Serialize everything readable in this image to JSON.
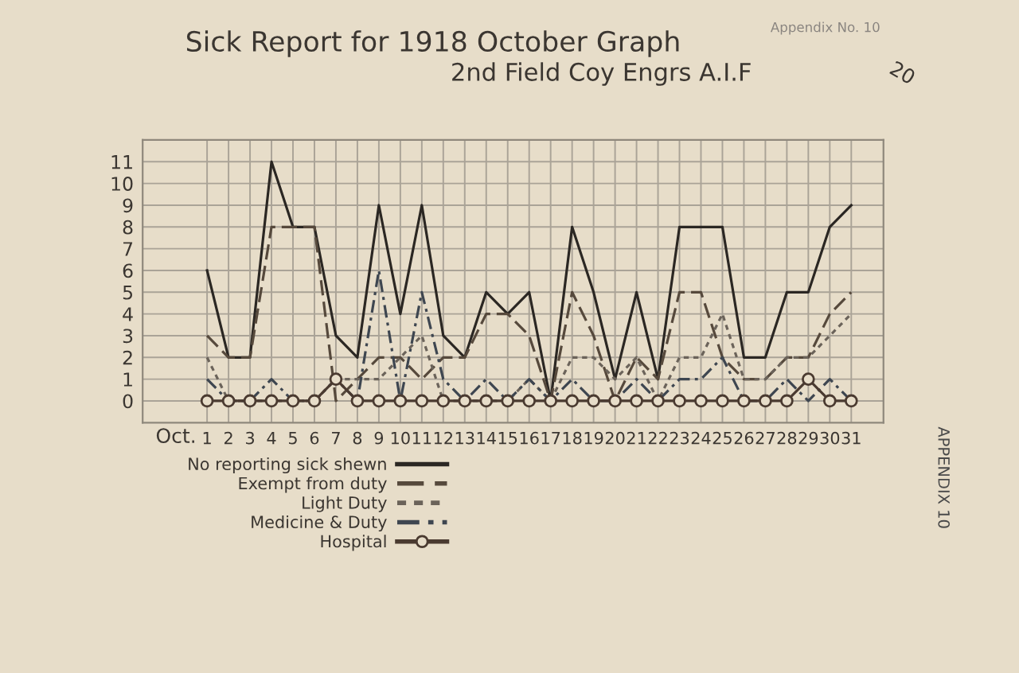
{
  "chart_data": {
    "type": "line",
    "title": "Sick Report for 1918 October Graph",
    "subtitle": "2nd Field Coy Engrs A.I.F",
    "xlabel": "Oct.",
    "categories": [
      "1",
      "2",
      "3",
      "4",
      "5",
      "6",
      "7",
      "8",
      "9",
      "10",
      "11",
      "12",
      "13",
      "14",
      "15",
      "16",
      "17",
      "18",
      "19",
      "20",
      "21",
      "22",
      "23",
      "24",
      "25",
      "26",
      "27",
      "28",
      "29",
      "30",
      "31"
    ],
    "ylim": [
      -1,
      12
    ],
    "yticks": [
      0,
      1,
      2,
      3,
      4,
      5,
      6,
      7,
      8,
      9,
      10,
      11
    ],
    "grid": true,
    "legend": "bottom left",
    "series": [
      {
        "name": "No reporting sick shewn",
        "color": "#2b2723",
        "line_style": "solid",
        "marker": "none",
        "values": [
          6,
          2,
          2,
          11,
          8,
          8,
          3,
          2,
          9,
          4,
          9,
          3,
          2,
          5,
          4,
          5,
          0,
          8,
          5,
          1,
          5,
          1,
          8,
          8,
          8,
          2,
          2,
          5,
          5,
          8,
          9
        ]
      },
      {
        "name": "Exempt from duty",
        "color": "#56493c",
        "line_style": "dashed",
        "marker": "none",
        "values": [
          3,
          2,
          2,
          8,
          8,
          8,
          0,
          1,
          2,
          2,
          1,
          2,
          2,
          4,
          4,
          3,
          0,
          5,
          3,
          0,
          2,
          1,
          5,
          5,
          2,
          1,
          1,
          2,
          2,
          4,
          5
        ]
      },
      {
        "name": "Light Duty",
        "color": "#6b635a",
        "line_style": "dotted",
        "marker": "none",
        "values": [
          2,
          0,
          0,
          0,
          0,
          0,
          1,
          1,
          1,
          2,
          3,
          0,
          0,
          0,
          0,
          1,
          0,
          2,
          2,
          1,
          2,
          0,
          2,
          2,
          4,
          1,
          1,
          2,
          2,
          3,
          4
        ]
      },
      {
        "name": "Medicine & Duty",
        "color": "#3e4650",
        "line_style": "dashdot",
        "marker": "none",
        "values": [
          1,
          0,
          0,
          1,
          0,
          0,
          1,
          0,
          6,
          0,
          5,
          1,
          0,
          1,
          0,
          1,
          0,
          1,
          0,
          0,
          1,
          0,
          1,
          1,
          2,
          0,
          0,
          1,
          0,
          1,
          0
        ]
      },
      {
        "name": "Hospital",
        "color": "#4a3a30",
        "line_style": "solid",
        "marker": "circle",
        "values": [
          0,
          0,
          0,
          0,
          0,
          0,
          1,
          0,
          0,
          0,
          0,
          0,
          0,
          0,
          0,
          0,
          0,
          0,
          0,
          0,
          0,
          0,
          0,
          0,
          0,
          0,
          0,
          0,
          1,
          0,
          0
        ]
      }
    ],
    "annotations": [
      "Appendix No. 10",
      "20",
      "APPENDIX 10"
    ]
  }
}
